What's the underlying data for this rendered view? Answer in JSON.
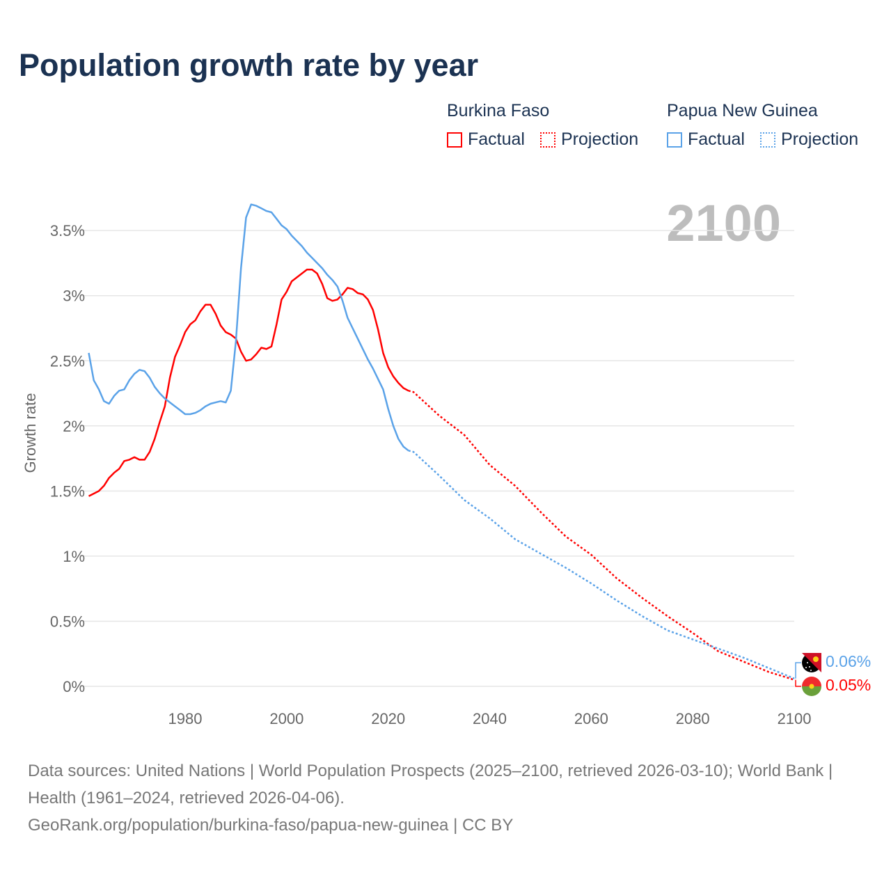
{
  "title": "Population growth rate by year",
  "current_year": "2100",
  "legend": {
    "groups": [
      {
        "country": "Burkina Faso",
        "factual": "Factual",
        "projection": "Projection",
        "color": "#ff0000"
      },
      {
        "country": "Papua New Guinea",
        "factual": "Factual",
        "projection": "Projection",
        "color": "#5aa2e8"
      }
    ]
  },
  "end_labels": {
    "png": "0.06%",
    "bf": "0.05%"
  },
  "footer": {
    "sources": "Data sources: United Nations | World Population Prospects (2025–2100, retrieved 2026-03-10); World Bank | Health (1961–2024, retrieved 2026-04-06).",
    "link": "GeoRank.org/population/burkina-faso/papua-new-guinea | CC BY"
  },
  "chart_data": {
    "type": "line",
    "title": "Population growth rate by year",
    "xlabel": "",
    "ylabel": "Growth rate",
    "xlim": [
      1961,
      2100
    ],
    "ylim": [
      0,
      3.75
    ],
    "xticks": [
      {
        "v": 1980,
        "label": "1980"
      },
      {
        "v": 2000,
        "label": "2000"
      },
      {
        "v": 2020,
        "label": "2020"
      },
      {
        "v": 2040,
        "label": "2040"
      },
      {
        "v": 2060,
        "label": "2060"
      },
      {
        "v": 2080,
        "label": "2080"
      },
      {
        "v": 2100,
        "label": "2100"
      }
    ],
    "yticks": [
      {
        "v": 0,
        "label": "0%"
      },
      {
        "v": 0.5,
        "label": "0.5%"
      },
      {
        "v": 1,
        "label": "1%"
      },
      {
        "v": 1.5,
        "label": "1.5%"
      },
      {
        "v": 2,
        "label": "2%"
      },
      {
        "v": 2.5,
        "label": "2.5%"
      },
      {
        "v": 3,
        "label": "3%"
      },
      {
        "v": 3.5,
        "label": "3.5%"
      }
    ],
    "grid": true,
    "series": [
      {
        "name": "Burkina Faso",
        "color": "#ff0000",
        "factual_start": 1961,
        "factual": [
          1.46,
          1.48,
          1.5,
          1.54,
          1.6,
          1.64,
          1.67,
          1.73,
          1.74,
          1.76,
          1.74,
          1.74,
          1.8,
          1.9,
          2.03,
          2.15,
          2.37,
          2.53,
          2.62,
          2.72,
          2.78,
          2.81,
          2.88,
          2.93,
          2.93,
          2.86,
          2.77,
          2.72,
          2.7,
          2.67,
          2.57,
          2.5,
          2.51,
          2.55,
          2.6,
          2.59,
          2.61,
          2.78,
          2.97,
          3.03,
          3.11,
          3.14,
          3.17,
          3.2,
          3.2,
          3.17,
          3.09,
          2.98,
          2.96,
          2.97,
          3.01,
          3.06,
          3.05,
          3.02,
          3.01,
          2.97,
          2.89,
          2.74,
          2.56,
          2.45,
          2.38,
          2.33,
          2.29,
          2.27
        ],
        "projection_x": [
          2024,
          2025,
          2030,
          2035,
          2040,
          2045,
          2050,
          2055,
          2060,
          2065,
          2070,
          2075,
          2080,
          2085,
          2090,
          2095,
          2100
        ],
        "projection": [
          2.27,
          2.26,
          2.08,
          1.93,
          1.7,
          1.54,
          1.34,
          1.15,
          1.01,
          0.83,
          0.68,
          0.54,
          0.41,
          0.27,
          0.19,
          0.11,
          0.05
        ]
      },
      {
        "name": "Papua New Guinea",
        "color": "#5aa2e8",
        "factual_start": 1961,
        "factual": [
          2.56,
          2.35,
          2.28,
          2.19,
          2.17,
          2.23,
          2.27,
          2.28,
          2.35,
          2.4,
          2.43,
          2.42,
          2.37,
          2.3,
          2.25,
          2.21,
          2.18,
          2.15,
          2.12,
          2.09,
          2.09,
          2.1,
          2.12,
          2.15,
          2.17,
          2.18,
          2.19,
          2.18,
          2.27,
          2.65,
          3.21,
          3.6,
          3.7,
          3.69,
          3.67,
          3.65,
          3.64,
          3.59,
          3.54,
          3.51,
          3.46,
          3.42,
          3.38,
          3.33,
          3.29,
          3.25,
          3.21,
          3.16,
          3.12,
          3.07,
          2.96,
          2.83,
          2.75,
          2.67,
          2.59,
          2.51,
          2.44,
          2.36,
          2.28,
          2.13,
          2.0,
          1.9,
          1.84,
          1.81
        ],
        "projection_x": [
          2024,
          2025,
          2030,
          2035,
          2040,
          2045,
          2050,
          2055,
          2060,
          2065,
          2070,
          2075,
          2080,
          2085,
          2090,
          2095,
          2100
        ],
        "projection": [
          1.81,
          1.8,
          1.62,
          1.43,
          1.29,
          1.13,
          1.02,
          0.91,
          0.79,
          0.66,
          0.54,
          0.43,
          0.36,
          0.29,
          0.22,
          0.14,
          0.06
        ]
      }
    ]
  }
}
